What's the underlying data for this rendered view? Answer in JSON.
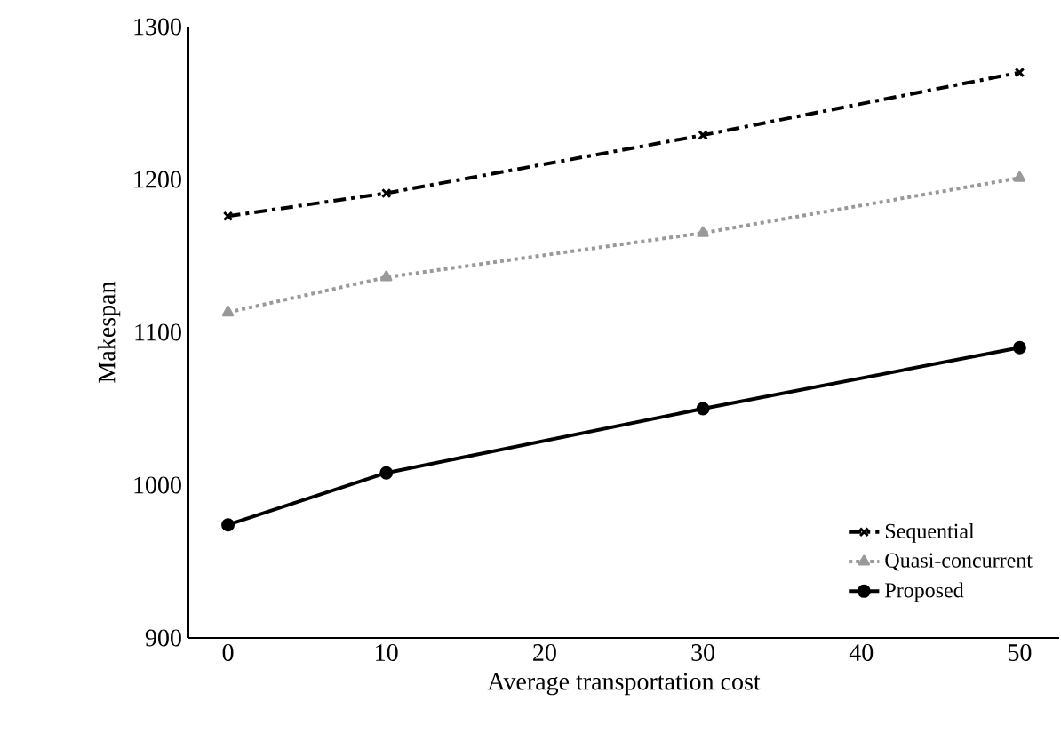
{
  "chart_data": {
    "type": "line",
    "xlabel": "Average transportation cost",
    "ylabel": "Makespan",
    "x": [
      0,
      10,
      30,
      50
    ],
    "xlim": [
      -2.5,
      52.5
    ],
    "xticks": [
      0,
      10,
      20,
      30,
      40,
      50
    ],
    "ylim": [
      900,
      1300
    ],
    "yticks": [
      900,
      1000,
      1100,
      1200,
      1300
    ],
    "grid": false,
    "legend": "bottom right",
    "series": [
      {
        "name": "Sequential",
        "color": "#000000",
        "values": [
          1176,
          1191,
          1229,
          1270
        ],
        "marker": "cross",
        "line_style": "dashdot"
      },
      {
        "name": "Quasi-concurrent",
        "color": "#999999",
        "values": [
          1113,
          1136,
          1165,
          1201
        ],
        "marker": "triangle",
        "line_style": "dotted"
      },
      {
        "name": "Proposed",
        "color": "#000000",
        "values": [
          974,
          1008,
          1050,
          1090
        ],
        "marker": "circle",
        "line_style": "solid"
      }
    ]
  }
}
